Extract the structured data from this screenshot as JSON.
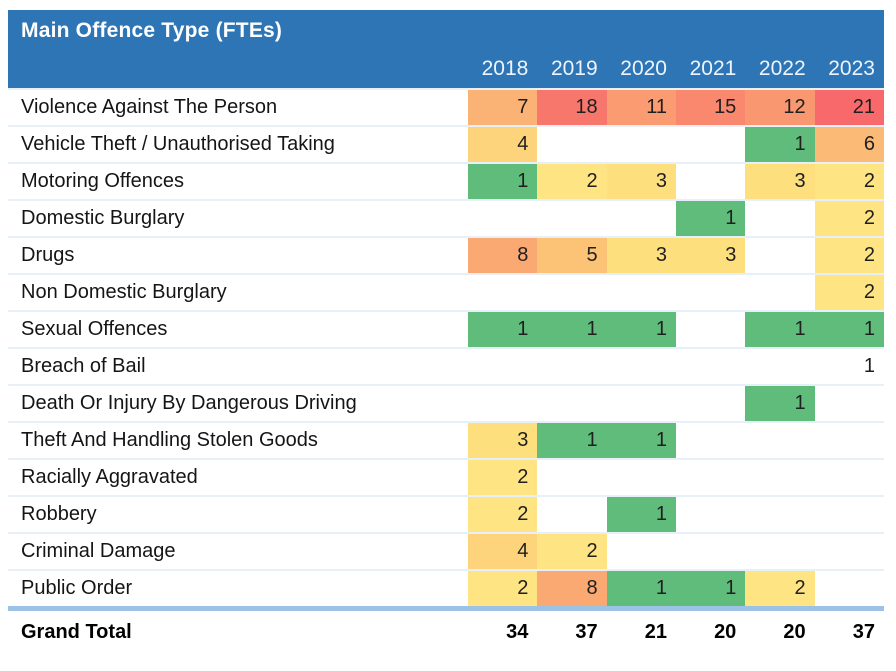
{
  "header": {
    "title": "Main Offence Type (FTEs)",
    "years": [
      "2018",
      "2019",
      "2020",
      "2021",
      "2022",
      "2023"
    ]
  },
  "colors": {
    "header_bg": "#2E75B6",
    "header_text": "#FFFFFF",
    "total_divider": "#9CC2E5",
    "row_border": "#E7EFF8",
    "scale_min_green": "#5FBC7B",
    "scale_mid_yellow": "#FEE482",
    "scale_max_red": "#F8696B"
  },
  "rows": [
    {
      "label": "Violence Against The Person",
      "cells": [
        {
          "v": "7",
          "bg": "#FBB375"
        },
        {
          "v": "18",
          "bg": "#F8776C"
        },
        {
          "v": "11",
          "bg": "#FA9B72"
        },
        {
          "v": "15",
          "bg": "#F9886E"
        },
        {
          "v": "12",
          "bg": "#F99770"
        },
        {
          "v": "21",
          "bg": "#F8696B"
        }
      ]
    },
    {
      "label": "Vehicle Theft / Unauthorised Taking",
      "cells": [
        {
          "v": "4",
          "bg": "#FDD47B"
        },
        null,
        null,
        null,
        {
          "v": "1",
          "bg": "#5FBC7B"
        },
        {
          "v": "6",
          "bg": "#FBBA76"
        }
      ]
    },
    {
      "label": "Motoring Offences",
      "cells": [
        {
          "v": "1",
          "bg": "#5FBC7B"
        },
        {
          "v": "2",
          "bg": "#FEE482"
        },
        {
          "v": "3",
          "bg": "#FDDF7E"
        },
        null,
        {
          "v": "3",
          "bg": "#FDDF7E"
        },
        {
          "v": "2",
          "bg": "#FEE482"
        }
      ]
    },
    {
      "label": "Domestic Burglary",
      "cells": [
        null,
        null,
        null,
        {
          "v": "1",
          "bg": "#5FBC7B"
        },
        null,
        {
          "v": "2",
          "bg": "#FEE482"
        }
      ]
    },
    {
      "label": "Drugs",
      "cells": [
        {
          "v": "8",
          "bg": "#FAA973"
        },
        {
          "v": "5",
          "bg": "#FCC377"
        },
        {
          "v": "3",
          "bg": "#FDDF7E"
        },
        {
          "v": "3",
          "bg": "#FDDF7E"
        },
        null,
        {
          "v": "2",
          "bg": "#FEE482"
        }
      ]
    },
    {
      "label": "Non Domestic Burglary",
      "cells": [
        null,
        null,
        null,
        null,
        null,
        {
          "v": "2",
          "bg": "#FEE482"
        }
      ]
    },
    {
      "label": "Sexual Offences",
      "cells": [
        {
          "v": "1",
          "bg": "#5FBC7B"
        },
        {
          "v": "1",
          "bg": "#5FBC7B"
        },
        {
          "v": "1",
          "bg": "#5FBC7B"
        },
        null,
        {
          "v": "1",
          "bg": "#5FBC7B"
        },
        {
          "v": "1",
          "bg": "#5FBC7B"
        }
      ]
    },
    {
      "label": "Breach of Bail",
      "cells": [
        null,
        null,
        null,
        null,
        null,
        {
          "v": "1",
          "bg": null
        }
      ]
    },
    {
      "label": "Death Or Injury By Dangerous Driving",
      "cells": [
        null,
        null,
        null,
        null,
        {
          "v": "1",
          "bg": "#5FBC7B"
        },
        null
      ]
    },
    {
      "label": "Theft And Handling Stolen Goods",
      "cells": [
        {
          "v": "3",
          "bg": "#FDDF7E"
        },
        {
          "v": "1",
          "bg": "#5FBC7B"
        },
        {
          "v": "1",
          "bg": "#5FBC7B"
        },
        null,
        null,
        null
      ]
    },
    {
      "label": "Racially Aggravated",
      "cells": [
        {
          "v": "2",
          "bg": "#FEE482"
        },
        null,
        null,
        null,
        null,
        null
      ]
    },
    {
      "label": "Robbery",
      "cells": [
        {
          "v": "2",
          "bg": "#FEE482"
        },
        null,
        {
          "v": "1",
          "bg": "#5FBC7B"
        },
        null,
        null,
        null
      ]
    },
    {
      "label": "Criminal Damage",
      "cells": [
        {
          "v": "4",
          "bg": "#FDD47B"
        },
        {
          "v": "2",
          "bg": "#FEE482"
        },
        null,
        null,
        null,
        null
      ]
    },
    {
      "label": "Public Order",
      "cells": [
        {
          "v": "2",
          "bg": "#FEE482"
        },
        {
          "v": "8",
          "bg": "#FAA973"
        },
        {
          "v": "1",
          "bg": "#5FBC7B"
        },
        {
          "v": "1",
          "bg": "#5FBC7B"
        },
        {
          "v": "2",
          "bg": "#FEE482"
        },
        null
      ]
    }
  ],
  "grand_total": {
    "label": "Grand Total",
    "values": [
      "34",
      "37",
      "21",
      "20",
      "20",
      "37"
    ]
  },
  "chart_data": {
    "type": "heatmap",
    "title": "Main Offence Type (FTEs)",
    "columns": [
      "2018",
      "2019",
      "2020",
      "2021",
      "2022",
      "2023"
    ],
    "rows": [
      "Violence Against The Person",
      "Vehicle Theft / Unauthorised Taking",
      "Motoring Offences",
      "Domestic Burglary",
      "Drugs",
      "Non Domestic Burglary",
      "Sexual Offences",
      "Breach of Bail",
      "Death Or Injury By Dangerous Driving",
      "Theft And Handling Stolen Goods",
      "Racially Aggravated",
      "Robbery",
      "Criminal Damage",
      "Public Order"
    ],
    "values": [
      [
        7,
        18,
        11,
        15,
        12,
        21
      ],
      [
        4,
        null,
        null,
        null,
        1,
        6
      ],
      [
        1,
        2,
        3,
        null,
        3,
        2
      ],
      [
        null,
        null,
        null,
        1,
        null,
        2
      ],
      [
        8,
        5,
        3,
        3,
        null,
        2
      ],
      [
        null,
        null,
        null,
        null,
        null,
        2
      ],
      [
        1,
        1,
        1,
        null,
        1,
        1
      ],
      [
        null,
        null,
        null,
        null,
        null,
        1
      ],
      [
        null,
        null,
        null,
        null,
        1,
        null
      ],
      [
        3,
        1,
        1,
        null,
        null,
        null
      ],
      [
        2,
        null,
        null,
        null,
        null,
        null
      ],
      [
        2,
        null,
        1,
        null,
        null,
        null
      ],
      [
        4,
        2,
        null,
        null,
        null,
        null
      ],
      [
        2,
        8,
        1,
        1,
        2,
        null
      ]
    ],
    "grand_total": [
      34,
      37,
      21,
      20,
      20,
      37
    ],
    "color_scale": {
      "min_green": 1,
      "max_red": 21,
      "legend": "green=low, yellow=mid, red=high"
    }
  }
}
